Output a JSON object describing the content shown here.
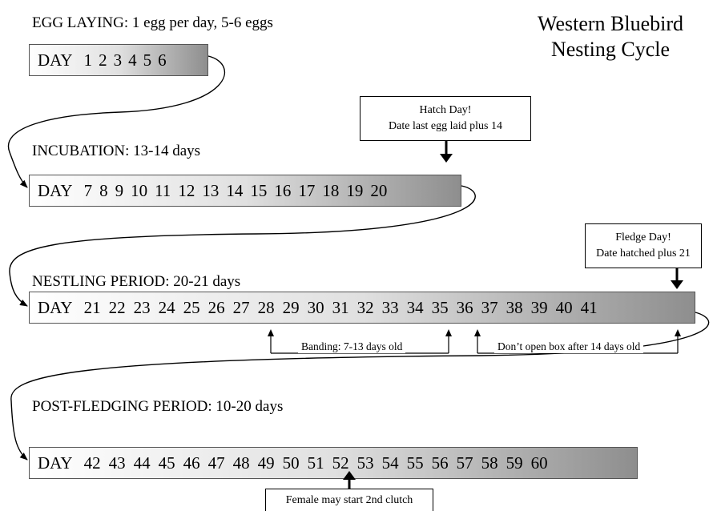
{
  "title": [
    "Western Bluebird",
    "Nesting Cycle"
  ],
  "phases": [
    {
      "heading": "EGG LAYING:  1 egg per day, 5-6 eggs",
      "label": "DAY",
      "days": [
        "1",
        "2",
        "3",
        "4",
        "5",
        "6"
      ]
    },
    {
      "heading": "INCUBATION:  13-14 days",
      "label": "DAY",
      "days": [
        "7",
        "8",
        "9",
        "10",
        "11",
        "12",
        "13",
        "14",
        "15",
        "16",
        "17",
        "18",
        "19",
        "20"
      ]
    },
    {
      "heading": "NESTLING PERIOD:  20-21 days",
      "label": "DAY",
      "days": [
        "21",
        "22",
        "23",
        "24",
        "25",
        "26",
        "27",
        "28",
        "29",
        "30",
        "31",
        "32",
        "33",
        "34",
        "35",
        "36",
        "37",
        "38",
        "39",
        "40",
        "41"
      ]
    },
    {
      "heading": "POST-FLEDGING PERIOD:  10-20 days",
      "label": "DAY",
      "days": [
        "42",
        "43",
        "44",
        "45",
        "46",
        "47",
        "48",
        "49",
        "50",
        "51",
        "52",
        "53",
        "54",
        "55",
        "56",
        "57",
        "58",
        "59",
        "60"
      ]
    }
  ],
  "callouts": {
    "hatch": [
      "Hatch Day!",
      "Date last egg laid plus 14"
    ],
    "fledge": [
      "Fledge Day!",
      "Date hatched plus 21"
    ],
    "clutch": "Female may start 2nd clutch"
  },
  "notes": {
    "banding": "Banding: 7-13 days old",
    "dont_open": "Don’t open box after 14 days old"
  }
}
